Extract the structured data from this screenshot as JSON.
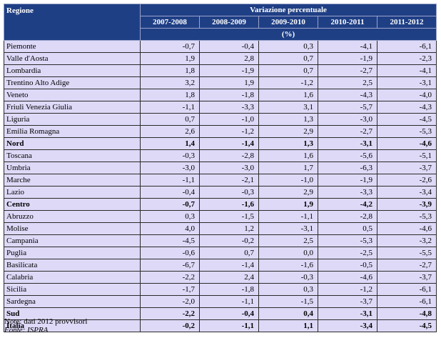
{
  "table": {
    "header_region": "Regione",
    "header_group": "Variazione percentuale",
    "unit": "(%)",
    "columns": [
      "2007-2008",
      "2008-2009",
      "2009-2010",
      "2010-2011",
      "2011-2012"
    ],
    "rows": [
      {
        "name": "Piemonte",
        "values": [
          "-0,7",
          "-0,4",
          "0,3",
          "-4,1",
          "-6,1"
        ],
        "bold": false
      },
      {
        "name": "Valle d'Aosta",
        "values": [
          "1,9",
          "2,8",
          "0,7",
          "-1,9",
          "-2,3"
        ],
        "bold": false
      },
      {
        "name": "Lombardia",
        "values": [
          "1,8",
          "-1,9",
          "0,7",
          "-2,7",
          "-4,1"
        ],
        "bold": false
      },
      {
        "name": "Trentino Alto Adige",
        "values": [
          "3,2",
          "1,9",
          "-1,2",
          "2,5",
          "-3,1"
        ],
        "bold": false
      },
      {
        "name": "Veneto",
        "values": [
          "1,8",
          "-1,8",
          "1,6",
          "-4,3",
          "-4,0"
        ],
        "bold": false
      },
      {
        "name": "Friuli Venezia Giulia",
        "values": [
          "-1,1",
          "-3,3",
          "3,1",
          "-5,7",
          "-4,3"
        ],
        "bold": false
      },
      {
        "name": "Liguria",
        "values": [
          "0,7",
          "-1,0",
          "1,3",
          "-3,0",
          "-4,5"
        ],
        "bold": false
      },
      {
        "name": "Emilia Romagna",
        "values": [
          "2,6",
          "-1,2",
          "2,9",
          "-2,7",
          "-5,3"
        ],
        "bold": false
      },
      {
        "name": "Nord",
        "values": [
          "1,4",
          "-1,4",
          "1,3",
          "-3,1",
          "-4,6"
        ],
        "bold": true
      },
      {
        "name": "Toscana",
        "values": [
          "-0,3",
          "-2,8",
          "1,6",
          "-5,6",
          "-5,1"
        ],
        "bold": false
      },
      {
        "name": "Umbria",
        "values": [
          "-3,0",
          "-3,0",
          "1,7",
          "-6,3",
          "-3,7"
        ],
        "bold": false
      },
      {
        "name": "Marche",
        "values": [
          "-1,1",
          "-2,1",
          "-1,0",
          "-1,9",
          "-2,6"
        ],
        "bold": false
      },
      {
        "name": "Lazio",
        "values": [
          "-0,4",
          "-0,3",
          "2,9",
          "-3,3",
          "-3,4"
        ],
        "bold": false
      },
      {
        "name": "Centro",
        "values": [
          "-0,7",
          "-1,6",
          "1,9",
          "-4,2",
          "-3,9"
        ],
        "bold": true
      },
      {
        "name": "Abruzzo",
        "values": [
          "0,3",
          "-1,5",
          "-1,1",
          "-2,8",
          "-5,3"
        ],
        "bold": false
      },
      {
        "name": "Molise",
        "values": [
          "4,0",
          "1,2",
          "-3,1",
          "0,5",
          "-4,6"
        ],
        "bold": false
      },
      {
        "name": "Campania",
        "values": [
          "-4,5",
          "-0,2",
          "2,5",
          "-5,3",
          "-3,2"
        ],
        "bold": false
      },
      {
        "name": "Puglia",
        "values": [
          "-0,6",
          "0,7",
          "0,0",
          "-2,5",
          "-5,5"
        ],
        "bold": false
      },
      {
        "name": "Basilicata",
        "values": [
          "-6,7",
          "-1,4",
          "-1,6",
          "-0,5",
          "-2,7"
        ],
        "bold": false
      },
      {
        "name": "Calabria",
        "values": [
          "-2,2",
          "2,4",
          "-0,3",
          "-4,6",
          "-3,7"
        ],
        "bold": false
      },
      {
        "name": "Sicilia",
        "values": [
          "-1,7",
          "-1,8",
          "0,3",
          "-1,2",
          "-6,1"
        ],
        "bold": false
      },
      {
        "name": "Sardegna",
        "values": [
          "-2,0",
          "-1,1",
          "-1,5",
          "-3,7",
          "-6,1"
        ],
        "bold": false
      },
      {
        "name": "Sud",
        "values": [
          "-2,2",
          "-0,4",
          "0,4",
          "-3,1",
          "-4,8"
        ],
        "bold": true
      },
      {
        "name": "Italia",
        "values": [
          "-0,2",
          "-1,1",
          "1,1",
          "-3,4",
          "-4,5"
        ],
        "bold": true
      }
    ]
  },
  "notes": {
    "note": "Note: dati 2012 provvisori",
    "source": "Fonte: ISPRA"
  }
}
